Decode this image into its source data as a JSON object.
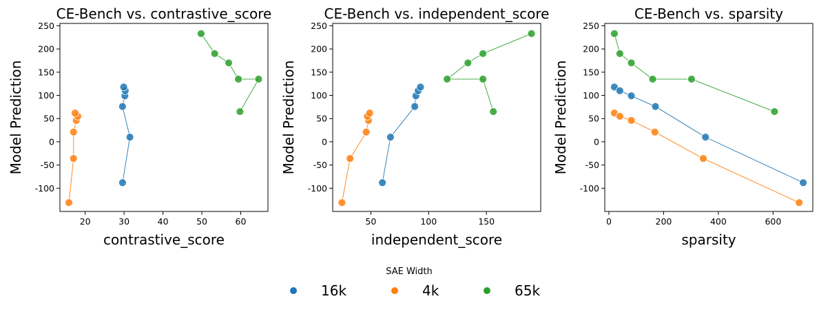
{
  "legend": {
    "title": "SAE Width",
    "entries": [
      {
        "name": "16k",
        "color": "#1f77b4"
      },
      {
        "name": "4k",
        "color": "#ff7f0e"
      },
      {
        "name": "65k",
        "color": "#2ca02c"
      }
    ]
  },
  "chart_data": [
    {
      "type": "scatter",
      "title": "CE-Bench vs. contrastive_score",
      "xlabel": "contrastive_score",
      "ylabel": "Model Prediction",
      "xlim": [
        13.5,
        67
      ],
      "ylim": [
        -150,
        255
      ],
      "xticks": [
        20,
        30,
        40,
        50,
        60
      ],
      "yticks": [
        -100,
        -50,
        0,
        50,
        100,
        150,
        200,
        250
      ],
      "series": [
        {
          "name": "16k",
          "color": "#1f77b4",
          "points": [
            [
              29.6,
              -88
            ],
            [
              31.5,
              10
            ],
            [
              29.6,
              76
            ],
            [
              30.2,
              99
            ],
            [
              30.3,
              110
            ],
            [
              29.9,
              118
            ]
          ]
        },
        {
          "name": "4k",
          "color": "#ff7f0e",
          "points": [
            [
              15.8,
              -131
            ],
            [
              17.0,
              -36
            ],
            [
              17.0,
              21
            ],
            [
              17.7,
              46
            ],
            [
              18.1,
              55
            ],
            [
              17.4,
              62
            ]
          ]
        },
        {
          "name": "65k",
          "color": "#2ca02c",
          "points": [
            [
              59.8,
              65
            ],
            [
              64.6,
              135
            ],
            [
              59.4,
              135
            ],
            [
              56.9,
              170
            ],
            [
              53.3,
              190
            ],
            [
              49.8,
              233
            ]
          ]
        }
      ]
    },
    {
      "type": "scatter",
      "title": "CE-Bench vs. independent_score",
      "xlabel": "independent_score",
      "ylabel": "Model Prediction",
      "xlim": [
        17,
        197
      ],
      "ylim": [
        -150,
        255
      ],
      "xticks": [
        50,
        100,
        150
      ],
      "yticks": [
        -100,
        -50,
        0,
        50,
        100,
        150,
        200,
        250
      ],
      "series": [
        {
          "name": "16k",
          "color": "#1f77b4",
          "points": [
            [
              60,
              -88
            ],
            [
              67,
              10
            ],
            [
              88,
              76
            ],
            [
              89,
              99
            ],
            [
              91,
              110
            ],
            [
              93,
              118
            ]
          ]
        },
        {
          "name": "4k",
          "color": "#ff7f0e",
          "points": [
            [
              25,
              -131
            ],
            [
              32,
              -36
            ],
            [
              46,
              21
            ],
            [
              48,
              46
            ],
            [
              47,
              55
            ],
            [
              49,
              62
            ]
          ]
        },
        {
          "name": "65k",
          "color": "#2ca02c",
          "points": [
            [
              156,
              65
            ],
            [
              147,
              135
            ],
            [
              116,
              135
            ],
            [
              134,
              170
            ],
            [
              147,
              190
            ],
            [
              189,
              233
            ]
          ]
        }
      ]
    },
    {
      "type": "scatter",
      "title": "CE-Bench vs. sparsity",
      "xlabel": "sparsity",
      "ylabel": "Model Prediction",
      "xlim": [
        -15,
        745
      ],
      "ylim": [
        -150,
        255
      ],
      "xticks": [
        0,
        200,
        400,
        600
      ],
      "yticks": [
        -100,
        -50,
        0,
        50,
        100,
        150,
        200,
        250
      ],
      "series": [
        {
          "name": "16k",
          "color": "#1f77b4",
          "points": [
            [
              20,
              118
            ],
            [
              40,
              110
            ],
            [
              82,
              99
            ],
            [
              170,
              76
            ],
            [
              353,
              10
            ],
            [
              710,
              -88
            ]
          ]
        },
        {
          "name": "4k",
          "color": "#ff7f0e",
          "points": [
            [
              20,
              62
            ],
            [
              40,
              55
            ],
            [
              82,
              46
            ],
            [
              168,
              21
            ],
            [
              345,
              -36
            ],
            [
              695,
              -131
            ]
          ]
        },
        {
          "name": "65k",
          "color": "#2ca02c",
          "points": [
            [
              20,
              233
            ],
            [
              40,
              190
            ],
            [
              82,
              170
            ],
            [
              160,
              135
            ],
            [
              302,
              135
            ],
            [
              605,
              65
            ]
          ]
        }
      ]
    }
  ]
}
